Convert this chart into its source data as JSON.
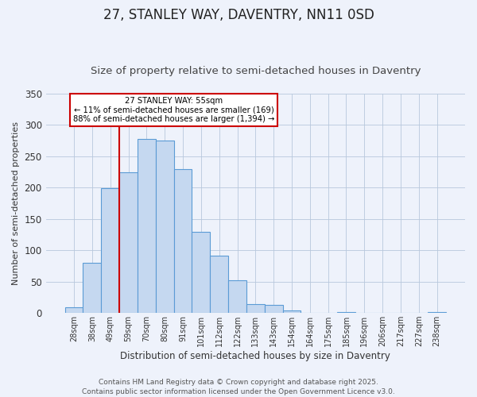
{
  "title": "27, STANLEY WAY, DAVENTRY, NN11 0SD",
  "subtitle": "Size of property relative to semi-detached houses in Daventry",
  "xlabel": "Distribution of semi-detached houses by size in Daventry",
  "ylabel": "Number of semi-detached properties",
  "categories": [
    "28sqm",
    "38sqm",
    "49sqm",
    "59sqm",
    "70sqm",
    "80sqm",
    "91sqm",
    "101sqm",
    "112sqm",
    "122sqm",
    "133sqm",
    "143sqm",
    "154sqm",
    "164sqm",
    "175sqm",
    "185sqm",
    "196sqm",
    "206sqm",
    "217sqm",
    "227sqm",
    "238sqm"
  ],
  "values": [
    9,
    80,
    199,
    224,
    278,
    275,
    230,
    130,
    91,
    52,
    14,
    13,
    4,
    0,
    0,
    2,
    0,
    0,
    0,
    0,
    2
  ],
  "bar_color": "#c5d8f0",
  "bar_edge_color": "#5b9bd5",
  "bar_edge_width": 0.8,
  "vline_x_index": 2,
  "vline_color": "#cc0000",
  "annotation_title": "27 STANLEY WAY: 55sqm",
  "annotation_line1": "← 11% of semi-detached houses are smaller (169)",
  "annotation_line2": "88% of semi-detached houses are larger (1,394) →",
  "annotation_box_color": "#cc0000",
  "ylim": [
    0,
    350
  ],
  "yticks": [
    0,
    50,
    100,
    150,
    200,
    250,
    300,
    350
  ],
  "background_color": "#eef2fb",
  "plot_bg_color": "#eef2fb",
  "title_fontsize": 12,
  "subtitle_fontsize": 9.5,
  "ylabel_fontsize": 8,
  "xlabel_fontsize": 8.5,
  "footer_text": "Contains HM Land Registry data © Crown copyright and database right 2025.\nContains public sector information licensed under the Open Government Licence v3.0.",
  "footer_fontsize": 6.5
}
